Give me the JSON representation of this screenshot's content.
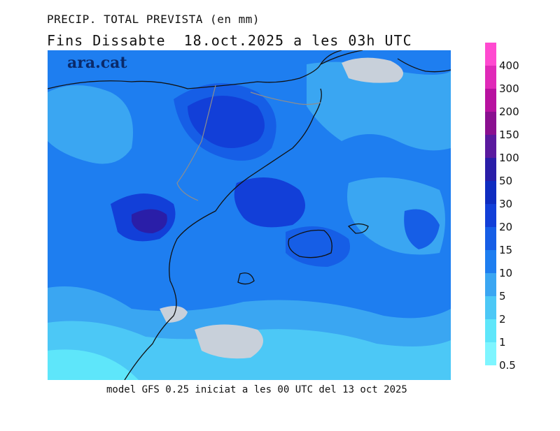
{
  "header": {
    "title": "PRECIP. TOTAL PREVISTA (en mm)",
    "subtitle": "Fins Dissabte  18.oct.2025 a les 03h UTC"
  },
  "footer": {
    "note": "model GFS 0.25 iniciat a les 00 UTC del 13 oct 2025"
  },
  "brand": {
    "name": "ara.cat"
  },
  "colors": {
    "c05": "#7ef5ff",
    "c1": "#5ee6fa",
    "c2": "#4cc8f6",
    "c5": "#3aa6f2",
    "c10": "#1e7ef0",
    "c15": "#165ee6",
    "c20": "#123fd8",
    "c30": "#0f2cc0",
    "c50": "#2a1ea8",
    "c100": "#5a1a9e",
    "c150": "#8a1090",
    "c200": "#b812a0",
    "c300": "#e02ab8",
    "c400": "#ff4ad0",
    "land_gray": "#c8d0da",
    "coast": "#111111",
    "border": "#8e8e8e"
  },
  "legend": {
    "items": [
      {
        "label": "400",
        "color": "#ff4ad0"
      },
      {
        "label": "300",
        "color": "#e02ab8"
      },
      {
        "label": "200",
        "color": "#b812a0"
      },
      {
        "label": "150",
        "color": "#8a1090"
      },
      {
        "label": "100",
        "color": "#5a1a9e"
      },
      {
        "label": "50",
        "color": "#2a1ea8"
      },
      {
        "label": "30",
        "color": "#0f2cc0"
      },
      {
        "label": "20",
        "color": "#123fd8"
      },
      {
        "label": "15",
        "color": "#165ee6"
      },
      {
        "label": "10",
        "color": "#1e7ef0"
      },
      {
        "label": "5",
        "color": "#3aa6f2"
      },
      {
        "label": "2",
        "color": "#4cc8f6"
      },
      {
        "label": "1",
        "color": "#5ee6fa"
      },
      {
        "label": "0.5",
        "color": "#7ef5ff"
      }
    ]
  }
}
